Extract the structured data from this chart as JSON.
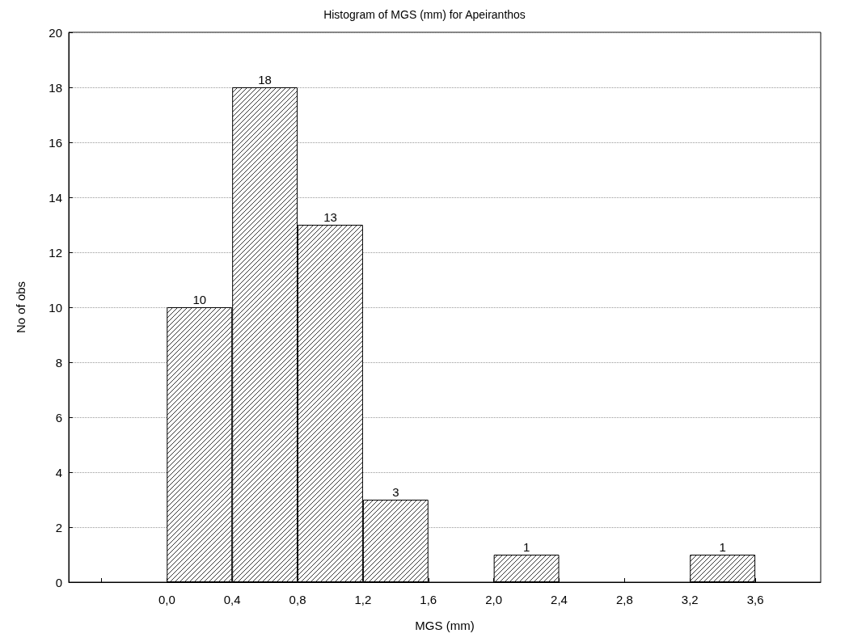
{
  "chart_data": {
    "type": "histogram",
    "title": "Histogram of MGS (mm) for Apeiranthos",
    "xlabel": "MGS (mm)",
    "ylabel": "No of obs",
    "bins": [
      0.0,
      0.4,
      0.8,
      1.2,
      1.6,
      2.0,
      2.4,
      2.8,
      3.2,
      3.6
    ],
    "values": [
      10,
      18,
      13,
      3,
      0,
      1,
      0,
      0,
      1
    ],
    "value_labels": [
      "10",
      "18",
      "13",
      "3",
      null,
      "1",
      null,
      null,
      "1"
    ],
    "color": "#000000",
    "xlim": [
      -0.6,
      4.0
    ],
    "xticks": [
      {
        "value": -0.4,
        "label": null
      },
      {
        "value": 0.0,
        "label": "0,0"
      },
      {
        "value": 0.4,
        "label": "0,4"
      },
      {
        "value": 0.8,
        "label": "0,8"
      },
      {
        "value": 1.2,
        "label": "1,2"
      },
      {
        "value": 1.6,
        "label": "1,6"
      },
      {
        "value": 2.0,
        "label": "2,0"
      },
      {
        "value": 2.4,
        "label": "2,4"
      },
      {
        "value": 2.8,
        "label": "2,8"
      },
      {
        "value": 3.2,
        "label": "3,2"
      },
      {
        "value": 3.6,
        "label": "3,6"
      }
    ],
    "ylim": [
      0,
      20
    ],
    "yticks": [
      0,
      2,
      4,
      6,
      8,
      10,
      12,
      14,
      16,
      18,
      20
    ],
    "grid": "y"
  }
}
